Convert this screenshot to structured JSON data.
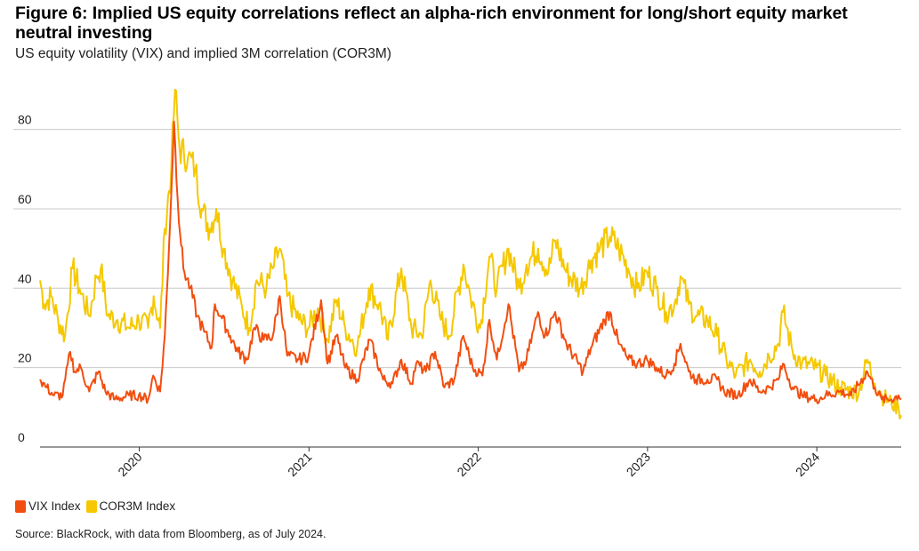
{
  "title": "Figure 6: Implied US equity correlations reflect an alpha-rich environment for long/short equity market neutral investing",
  "subtitle": "US equity volatility (VIX) and implied 3M correlation (COR3M)",
  "source": "Source: BlackRock, with data from Bloomberg, as of July 2024.",
  "chart_data": {
    "type": "line",
    "title": "Figure 6: Implied US equity correlations reflect an alpha-rich environment for long/short equity market neutral investing",
    "subtitle": "US equity volatility (VIX) and implied 3M correlation (COR3M)",
    "xlabel": "",
    "ylabel": "",
    "x_ticks": [
      "2020",
      "2021",
      "2022",
      "2023",
      "2024"
    ],
    "y_ticks": [
      0,
      20,
      40,
      60,
      80
    ],
    "xlim": [
      "2019-06-01",
      "2024-07-01"
    ],
    "ylim": [
      0,
      92
    ],
    "grid": "horizontal",
    "legend_position": "bottom-left",
    "colors": {
      "VIX Index": "#f24e10",
      "COR3M Index": "#f5c800"
    },
    "series": [
      {
        "name": "VIX Index",
        "color": "#f24e10",
        "points": [
          [
            "2019-06-01",
            17
          ],
          [
            "2019-06-15",
            15
          ],
          [
            "2019-07-01",
            13
          ],
          [
            "2019-07-20",
            13
          ],
          [
            "2019-08-05",
            24
          ],
          [
            "2019-08-15",
            19
          ],
          [
            "2019-08-28",
            20
          ],
          [
            "2019-09-15",
            14
          ],
          [
            "2019-10-05",
            19
          ],
          [
            "2019-10-20",
            14
          ],
          [
            "2019-11-10",
            12
          ],
          [
            "2019-12-10",
            13
          ],
          [
            "2019-12-31",
            13
          ],
          [
            "2020-01-20",
            12
          ],
          [
            "2020-01-31",
            18
          ],
          [
            "2020-02-15",
            14
          ],
          [
            "2020-02-25",
            28
          ],
          [
            "2020-03-05",
            50
          ],
          [
            "2020-03-16",
            82
          ],
          [
            "2020-03-24",
            62
          ],
          [
            "2020-04-05",
            45
          ],
          [
            "2020-04-20",
            40
          ],
          [
            "2020-05-05",
            33
          ],
          [
            "2020-05-20",
            29
          ],
          [
            "2020-06-05",
            25
          ],
          [
            "2020-06-12",
            36
          ],
          [
            "2020-06-25",
            33
          ],
          [
            "2020-07-15",
            28
          ],
          [
            "2020-08-01",
            24
          ],
          [
            "2020-08-20",
            22
          ],
          [
            "2020-09-05",
            30
          ],
          [
            "2020-09-25",
            27
          ],
          [
            "2020-10-15",
            28
          ],
          [
            "2020-10-30",
            38
          ],
          [
            "2020-11-15",
            23
          ],
          [
            "2020-12-10",
            22
          ],
          [
            "2020-12-31",
            23
          ],
          [
            "2021-01-27",
            37
          ],
          [
            "2021-02-10",
            21
          ],
          [
            "2021-03-01",
            28
          ],
          [
            "2021-03-20",
            20
          ],
          [
            "2021-04-15",
            17
          ],
          [
            "2021-05-12",
            27
          ],
          [
            "2021-06-10",
            17
          ],
          [
            "2021-06-30",
            16
          ],
          [
            "2021-07-19",
            22
          ],
          [
            "2021-08-10",
            16
          ],
          [
            "2021-08-20",
            21
          ],
          [
            "2021-09-10",
            19
          ],
          [
            "2021-09-30",
            24
          ],
          [
            "2021-10-20",
            15
          ],
          [
            "2021-11-10",
            17
          ],
          [
            "2021-11-30",
            28
          ],
          [
            "2021-12-20",
            20
          ],
          [
            "2022-01-10",
            18
          ],
          [
            "2022-01-25",
            32
          ],
          [
            "2022-02-10",
            22
          ],
          [
            "2022-03-07",
            36
          ],
          [
            "2022-03-30",
            19
          ],
          [
            "2022-04-15",
            22
          ],
          [
            "2022-05-10",
            34
          ],
          [
            "2022-05-25",
            28
          ],
          [
            "2022-06-16",
            34
          ],
          [
            "2022-07-10",
            26
          ],
          [
            "2022-08-15",
            19
          ],
          [
            "2022-09-01",
            25
          ],
          [
            "2022-09-30",
            32
          ],
          [
            "2022-10-12",
            34
          ],
          [
            "2022-10-31",
            26
          ],
          [
            "2022-11-20",
            22
          ],
          [
            "2022-12-10",
            21
          ],
          [
            "2022-12-31",
            22
          ],
          [
            "2023-01-20",
            20
          ],
          [
            "2023-02-10",
            18
          ],
          [
            "2023-02-28",
            21
          ],
          [
            "2023-03-13",
            26
          ],
          [
            "2023-03-31",
            19
          ],
          [
            "2023-04-15",
            17
          ],
          [
            "2023-05-10",
            17
          ],
          [
            "2023-05-31",
            17
          ],
          [
            "2023-06-15",
            14
          ],
          [
            "2023-07-15",
            13
          ],
          [
            "2023-08-10",
            17
          ],
          [
            "2023-08-31",
            14
          ],
          [
            "2023-09-20",
            15
          ],
          [
            "2023-10-10",
            17
          ],
          [
            "2023-10-20",
            21
          ],
          [
            "2023-11-10",
            15
          ],
          [
            "2023-11-30",
            13
          ],
          [
            "2023-12-31",
            12
          ],
          [
            "2024-01-20",
            13
          ],
          [
            "2024-02-20",
            14
          ],
          [
            "2024-03-15",
            13
          ],
          [
            "2024-04-19",
            19
          ],
          [
            "2024-05-05",
            15
          ],
          [
            "2024-05-20",
            12
          ],
          [
            "2024-06-10",
            12
          ],
          [
            "2024-06-25",
            13
          ],
          [
            "2024-07-01",
            12
          ]
        ]
      },
      {
        "name": "COR3M Index",
        "color": "#f5c800",
        "points": [
          [
            "2019-06-01",
            42
          ],
          [
            "2019-06-10",
            36
          ],
          [
            "2019-06-25",
            38
          ],
          [
            "2019-07-10",
            32
          ],
          [
            "2019-07-25",
            28
          ],
          [
            "2019-08-10",
            45
          ],
          [
            "2019-08-25",
            40
          ],
          [
            "2019-09-15",
            33
          ],
          [
            "2019-10-01",
            43
          ],
          [
            "2019-10-10",
            45
          ],
          [
            "2019-10-25",
            33
          ],
          [
            "2019-11-15",
            32
          ],
          [
            "2019-12-10",
            30
          ],
          [
            "2019-12-31",
            32
          ],
          [
            "2020-01-20",
            30
          ],
          [
            "2020-02-01",
            38
          ],
          [
            "2020-02-15",
            30
          ],
          [
            "2020-02-25",
            55
          ],
          [
            "2020-03-10",
            70
          ],
          [
            "2020-03-18",
            90
          ],
          [
            "2020-03-28",
            75
          ],
          [
            "2020-04-15",
            73
          ],
          [
            "2020-05-01",
            70
          ],
          [
            "2020-05-15",
            60
          ],
          [
            "2020-06-01",
            55
          ],
          [
            "2020-06-15",
            60
          ],
          [
            "2020-07-01",
            50
          ],
          [
            "2020-07-20",
            42
          ],
          [
            "2020-08-10",
            35
          ],
          [
            "2020-08-25",
            30
          ],
          [
            "2020-09-10",
            42
          ],
          [
            "2020-10-01",
            40
          ],
          [
            "2020-10-15",
            45
          ],
          [
            "2020-10-30",
            50
          ],
          [
            "2020-11-15",
            38
          ],
          [
            "2020-12-10",
            32
          ],
          [
            "2020-12-31",
            30
          ],
          [
            "2021-01-20",
            35
          ],
          [
            "2021-02-10",
            27
          ],
          [
            "2021-03-01",
            37
          ],
          [
            "2021-03-20",
            30
          ],
          [
            "2021-04-15",
            25
          ],
          [
            "2021-05-10",
            40
          ],
          [
            "2021-06-01",
            36
          ],
          [
            "2021-06-20",
            27
          ],
          [
            "2021-07-19",
            45
          ],
          [
            "2021-08-10",
            30
          ],
          [
            "2021-09-01",
            28
          ],
          [
            "2021-09-20",
            42
          ],
          [
            "2021-10-10",
            33
          ],
          [
            "2021-10-30",
            28
          ],
          [
            "2021-11-30",
            46
          ],
          [
            "2021-12-15",
            38
          ],
          [
            "2022-01-05",
            30
          ],
          [
            "2022-01-25",
            48
          ],
          [
            "2022-02-10",
            40
          ],
          [
            "2022-03-07",
            50
          ],
          [
            "2022-03-30",
            40
          ],
          [
            "2022-04-15",
            46
          ],
          [
            "2022-05-10",
            50
          ],
          [
            "2022-06-01",
            44
          ],
          [
            "2022-06-16",
            52
          ],
          [
            "2022-07-10",
            44
          ],
          [
            "2022-08-10",
            40
          ],
          [
            "2022-09-01",
            47
          ],
          [
            "2022-09-20",
            50
          ],
          [
            "2022-10-12",
            53
          ],
          [
            "2022-10-31",
            50
          ],
          [
            "2022-11-20",
            45
          ],
          [
            "2022-12-10",
            40
          ],
          [
            "2022-12-31",
            44
          ],
          [
            "2023-01-20",
            40
          ],
          [
            "2023-02-10",
            34
          ],
          [
            "2023-02-28",
            36
          ],
          [
            "2023-03-13",
            43
          ],
          [
            "2023-03-31",
            36
          ],
          [
            "2023-04-15",
            33
          ],
          [
            "2023-05-10",
            32
          ],
          [
            "2023-05-31",
            28
          ],
          [
            "2023-06-20",
            22
          ],
          [
            "2023-07-10",
            18
          ],
          [
            "2023-08-10",
            22
          ],
          [
            "2023-08-31",
            19
          ],
          [
            "2023-09-20",
            23
          ],
          [
            "2023-10-10",
            26
          ],
          [
            "2023-10-20",
            34
          ],
          [
            "2023-11-10",
            24
          ],
          [
            "2023-11-30",
            21
          ],
          [
            "2023-12-31",
            20
          ],
          [
            "2024-01-20",
            18
          ],
          [
            "2024-02-20",
            15
          ],
          [
            "2024-03-15",
            14
          ],
          [
            "2024-04-01",
            14
          ],
          [
            "2024-04-19",
            22
          ],
          [
            "2024-05-05",
            16
          ],
          [
            "2024-05-20",
            13
          ],
          [
            "2024-06-10",
            11
          ],
          [
            "2024-06-25",
            10
          ],
          [
            "2024-07-01",
            8
          ]
        ]
      }
    ]
  }
}
